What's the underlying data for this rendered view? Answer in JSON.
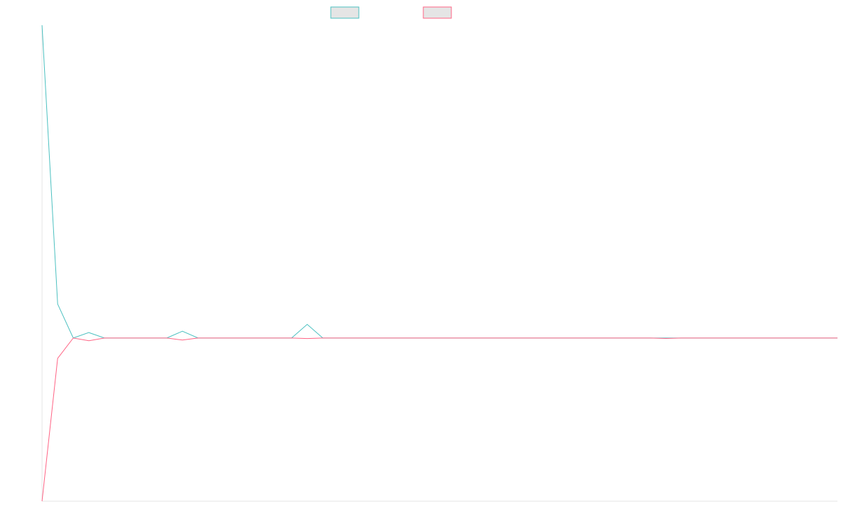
{
  "chart_data": {
    "type": "line",
    "title": "",
    "xlabel": "",
    "ylabel": "",
    "legend_position": "top-center",
    "grid": false,
    "x": [
      0,
      1,
      2,
      3,
      4,
      5,
      6,
      7,
      8,
      9,
      10,
      11,
      12,
      13,
      14,
      15,
      16,
      17,
      18,
      19,
      20,
      21,
      22,
      23,
      24,
      25,
      26,
      27,
      28,
      29,
      30,
      31,
      32,
      33,
      34,
      35,
      36,
      37,
      38,
      39,
      40,
      41,
      42,
      43,
      44,
      45,
      46,
      47,
      48,
      49,
      50,
      51
    ],
    "xlim": [
      0,
      51
    ],
    "ylim": [
      -1.2,
      2.3
    ],
    "series": [
      {
        "name": "",
        "color": "#4bc0c0",
        "fill": "#e5e5e5",
        "values": [
          2.3,
          0.25,
          0,
          0.04,
          0,
          0,
          0,
          0,
          0,
          0.05,
          0,
          0,
          0,
          0,
          0,
          0,
          0,
          0.1,
          0,
          0,
          0,
          0,
          0,
          0,
          0,
          0,
          0,
          0,
          0,
          0,
          0,
          0,
          0,
          0,
          0,
          0,
          0,
          0,
          0,
          0,
          0,
          0,
          0,
          0,
          0,
          0,
          0,
          0,
          0,
          0,
          0,
          0
        ]
      },
      {
        "name": "",
        "color": "#ff6384",
        "fill": "#e5e5e5",
        "values": [
          -1.2,
          -0.15,
          0,
          -0.02,
          0,
          0,
          0,
          0,
          0,
          -0.015,
          0,
          0,
          0,
          0,
          0,
          0,
          0,
          -0.004,
          0,
          0,
          0,
          0,
          0,
          0,
          0,
          0,
          0,
          0,
          0,
          0,
          0,
          0,
          0,
          0,
          0,
          0,
          0,
          0,
          0,
          0,
          -0.003,
          0,
          0,
          0,
          0,
          0,
          0,
          0,
          0,
          0,
          0,
          0
        ]
      }
    ]
  }
}
